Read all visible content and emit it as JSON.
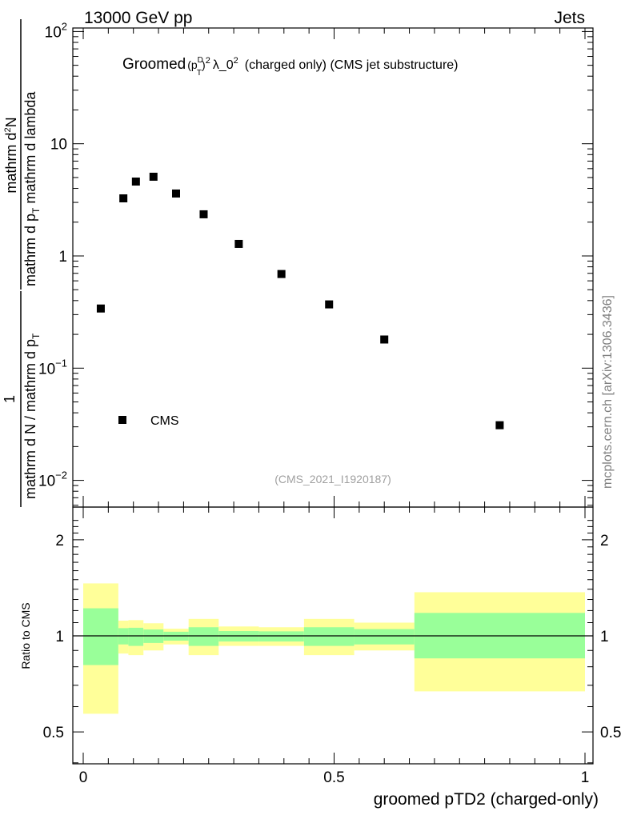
{
  "header": {
    "left": "13000 GeV pp",
    "right": "Jets"
  },
  "side_label": "mcplots.cern.ch [arXiv:1306.3436]",
  "colors": {
    "band_outer": "#ffff99",
    "band_inner": "#99ff99",
    "marker": "#000000",
    "side_label": "#808080",
    "analysis_label": "#a0a0a0"
  },
  "chart_data": [
    {
      "type": "scatter",
      "title_parts": {
        "prefix": "Groomed",
        "p": "p",
        "sup_D": "D",
        "sub_T": "T",
        "sup_2": "2",
        "lambda": "λ_0",
        "lambda_sup": "2",
        "suffix": "(charged only) (CMS jet substructure)"
      },
      "ylabel": {
        "num_a": "1",
        "den_a": "mathrm d N / mathrm d p",
        "den_a_sub": "T",
        "num_b": "mathrm d",
        "num_b_sup": "2",
        "num_b_tail": "N",
        "den_b": "mathrm d p",
        "den_b_sub": "T",
        "den_b_tail": " mathrm d lambda"
      },
      "yscale": "log",
      "ylim": [
        0.006,
        120
      ],
      "xlim": [
        -0.02,
        1.02
      ],
      "yticks": [
        {
          "value": 100,
          "base": "10",
          "exp": "2"
        },
        {
          "value": 10,
          "base": "10",
          "exp": ""
        },
        {
          "value": 1,
          "base": "1",
          "exp": ""
        },
        {
          "value": 0.1,
          "base": "10",
          "exp": "−1"
        },
        {
          "value": 0.01,
          "base": "10",
          "exp": "−2"
        }
      ],
      "legend": {
        "entries": [
          "CMS"
        ],
        "placement": "bottom-left"
      },
      "analysis_label": "(CMS_2021_I1920187)",
      "series": [
        {
          "name": "CMS",
          "x": [
            0.035,
            0.08,
            0.105,
            0.14,
            0.185,
            0.24,
            0.31,
            0.395,
            0.49,
            0.6,
            0.83
          ],
          "y": [
            0.34,
            3.26,
            4.6,
            5.08,
            3.6,
            2.35,
            1.28,
            0.69,
            0.37,
            0.18,
            0.031
          ]
        }
      ]
    },
    {
      "type": "area",
      "ylabel": "Ratio to CMS",
      "xlabel": "groomed pTD2 (charged-only)",
      "yscale": "log",
      "ylim": [
        0.45,
        2.3
      ],
      "yticks": [
        {
          "value": 2,
          "label": "2"
        },
        {
          "value": 1,
          "label": "1"
        },
        {
          "value": 0.5,
          "label": "0.5"
        }
      ],
      "xticks": [
        {
          "value": 0,
          "label": "0"
        },
        {
          "value": 0.5,
          "label": "0.5"
        },
        {
          "value": 1,
          "label": "1"
        }
      ],
      "bin_edges": [
        0,
        0.07,
        0.09,
        0.12,
        0.16,
        0.21,
        0.27,
        0.35,
        0.44,
        0.54,
        0.66,
        1.0
      ],
      "outer_band": {
        "low": [
          0.57,
          0.88,
          0.87,
          0.9,
          0.94,
          0.87,
          0.93,
          0.93,
          0.87,
          0.9,
          0.67
        ],
        "high": [
          1.46,
          1.116,
          1.12,
          1.095,
          1.053,
          1.13,
          1.07,
          1.064,
          1.13,
          1.1,
          1.37
        ]
      },
      "inner_band": {
        "low": [
          0.81,
          0.94,
          0.93,
          0.95,
          0.966,
          0.93,
          0.96,
          0.96,
          0.93,
          0.94,
          0.85
        ],
        "high": [
          1.22,
          1.057,
          1.06,
          1.047,
          1.03,
          1.064,
          1.035,
          1.033,
          1.064,
          1.05,
          1.18
        ]
      },
      "reference": 1
    }
  ]
}
